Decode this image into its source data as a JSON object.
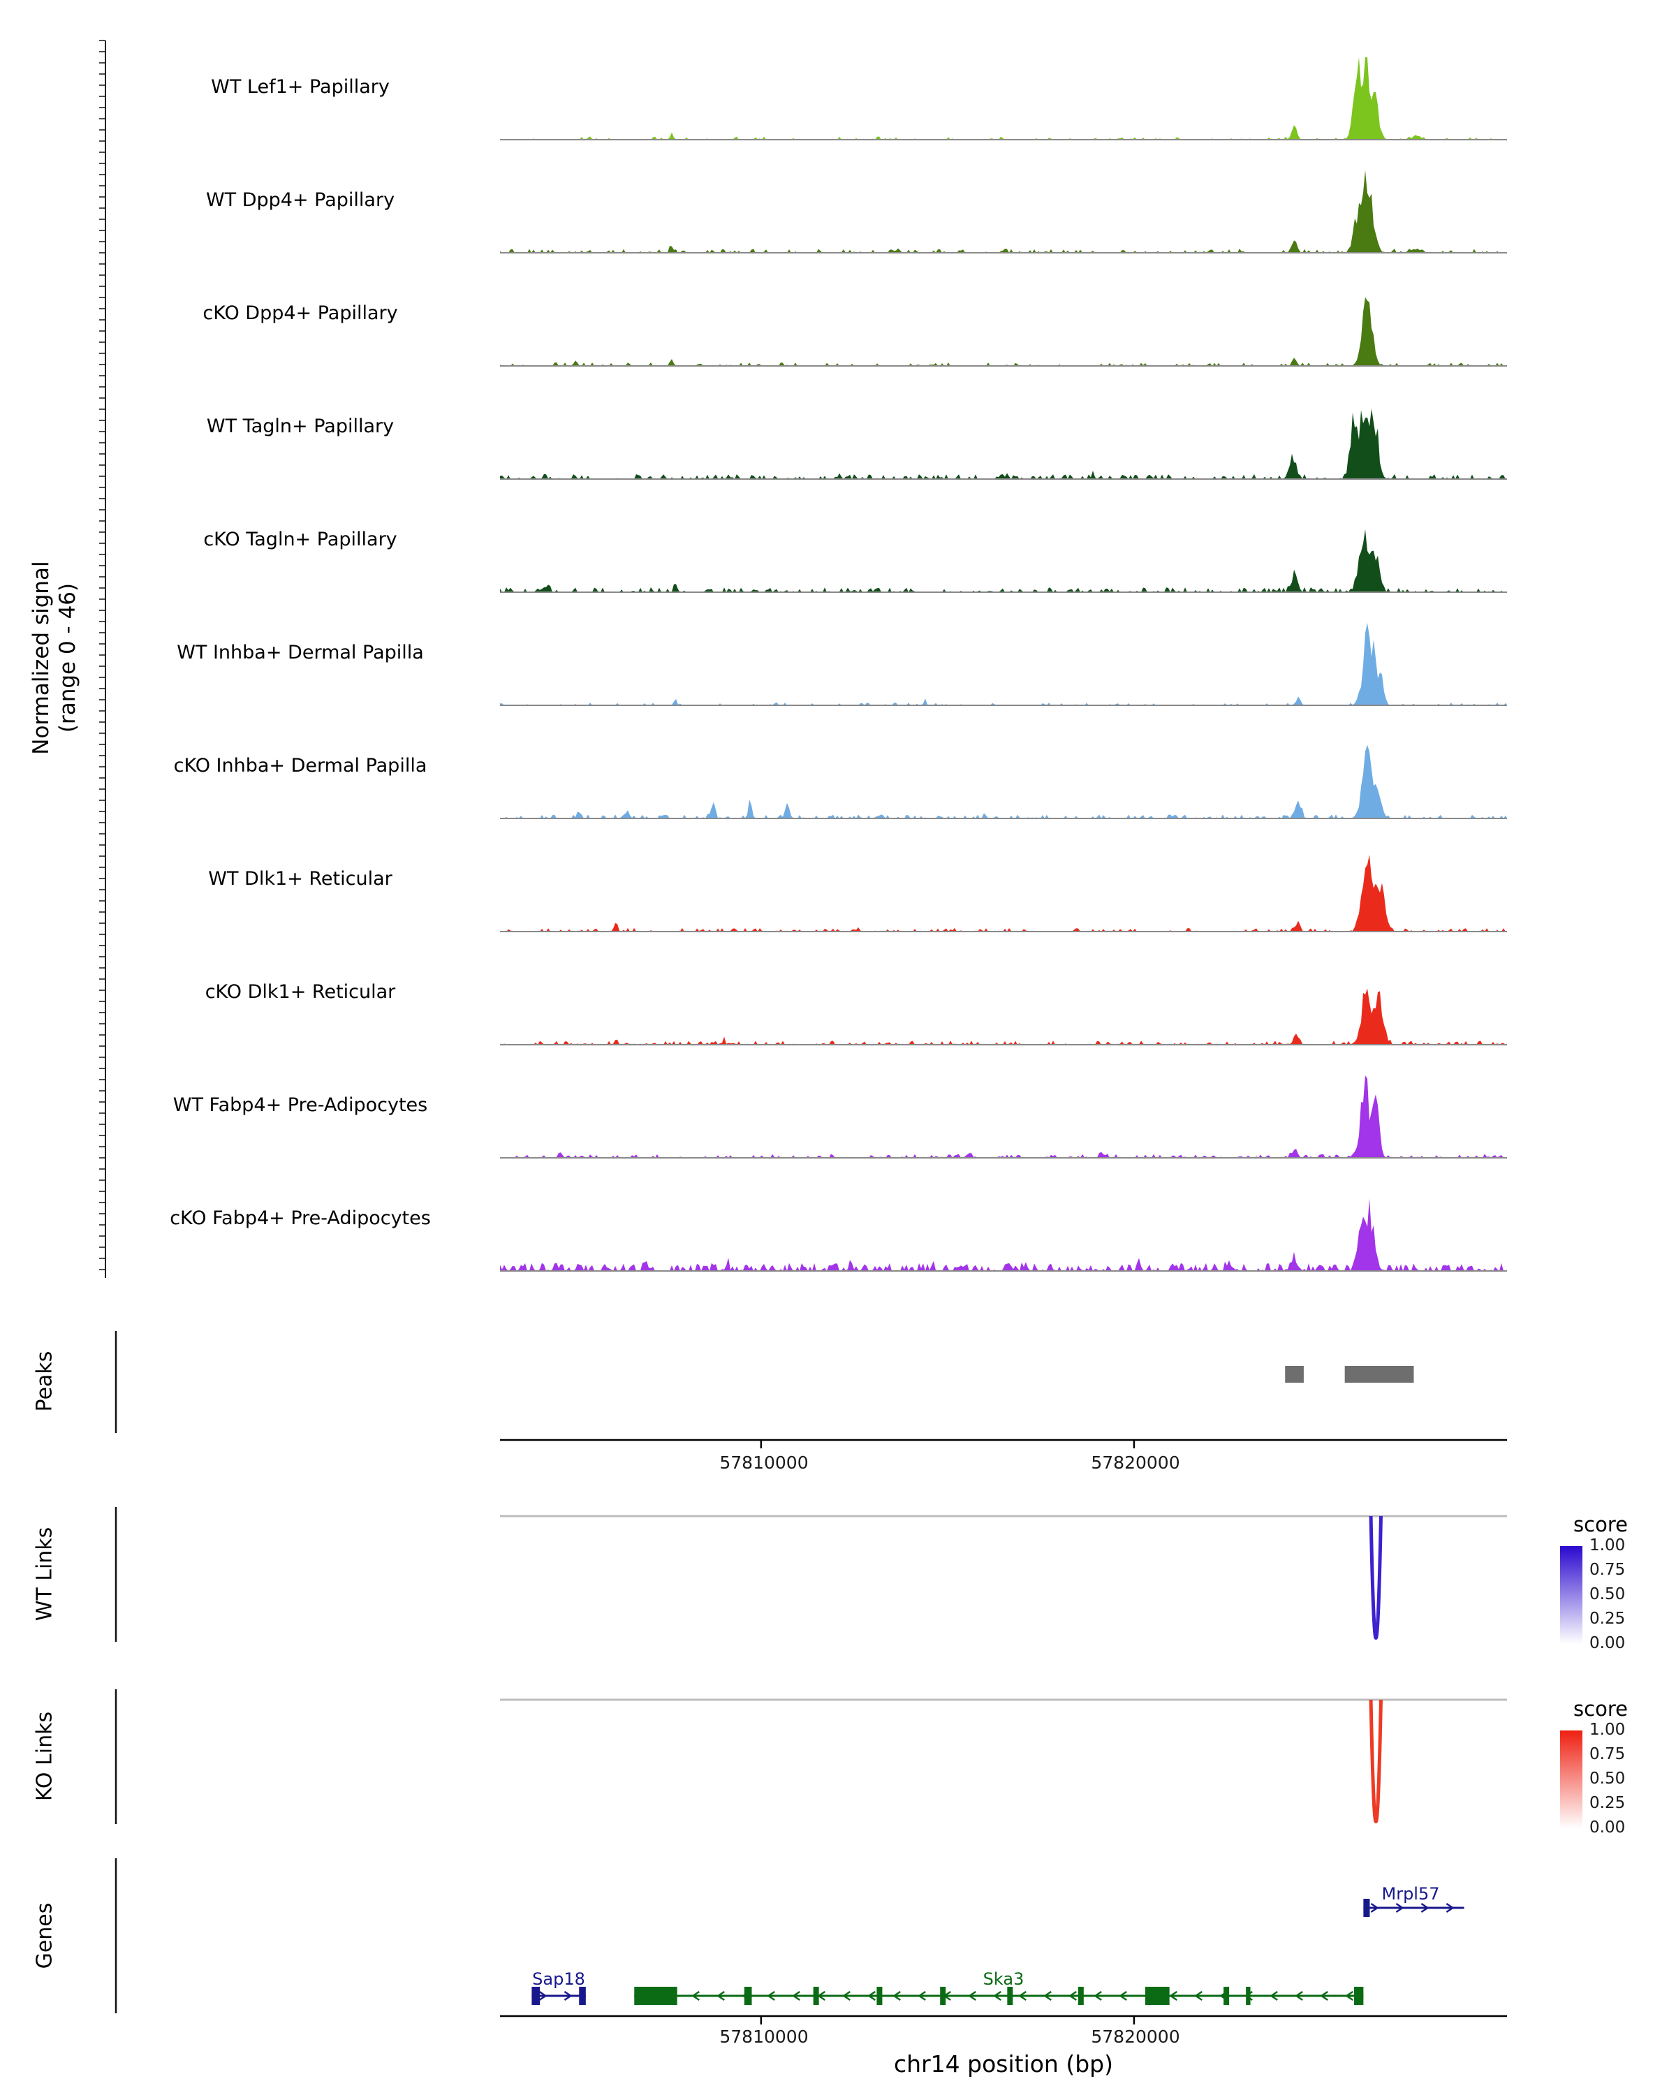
{
  "panel_labels": {
    "signal_line1": "Normalized signal",
    "signal_line2": "(range 0 - 46)",
    "peaks": "Peaks",
    "wt_links": "WT Links",
    "ko_links": "KO Links",
    "genes": "Genes"
  },
  "legend": {
    "title": "score",
    "ticks": [
      "1.00",
      "0.75",
      "0.50",
      "0.25",
      "0.00"
    ],
    "wt_top_color": "#2B09CE",
    "ko_top_color": "#EE2012"
  },
  "chart_data": {
    "type": "area",
    "title": "",
    "genome": {
      "chrom": "chr14",
      "xlabel": "chr14 position (bp)",
      "xlim": [
        57803000,
        57830000
      ],
      "x_ticks": [
        57810000,
        57820000
      ],
      "x_tick_labels": [
        "57810000",
        "57820000"
      ],
      "signal_range": [
        0,
        46
      ]
    },
    "tracks": [
      {
        "name": "WT Lef1+ Papillary",
        "color": "#7CC41E",
        "peaks": [
          {
            "c": 57826200,
            "w": 160,
            "h": 44
          },
          {
            "c": 57825950,
            "w": 90,
            "h": 22
          },
          {
            "c": 57826500,
            "w": 90,
            "h": 12
          },
          {
            "c": 57824300,
            "w": 70,
            "h": 7
          },
          {
            "c": 57807600,
            "w": 50,
            "h": 2.5
          },
          {
            "c": 57805400,
            "w": 50,
            "h": 1.5
          },
          {
            "c": 57827600,
            "w": 90,
            "h": 2.5
          }
        ],
        "noise": {
          "amp": 0.7,
          "density": 0.18,
          "seed": 11
        }
      },
      {
        "name": "WT Dpp4+ Papillary",
        "color": "#4A7A12",
        "peaks": [
          {
            "c": 57826250,
            "w": 140,
            "h": 45
          },
          {
            "c": 57825950,
            "w": 90,
            "h": 16
          },
          {
            "c": 57824300,
            "w": 70,
            "h": 6
          },
          {
            "c": 57807600,
            "w": 50,
            "h": 3
          },
          {
            "c": 57813600,
            "w": 50,
            "h": 1.5
          },
          {
            "c": 57827550,
            "w": 90,
            "h": 2.5
          }
        ],
        "noise": {
          "amp": 0.9,
          "density": 0.3,
          "seed": 22
        }
      },
      {
        "name": "cKO Dpp4+ Papillary",
        "color": "#4A7A12",
        "peaks": [
          {
            "c": 57826250,
            "w": 130,
            "h": 33
          },
          {
            "c": 57824300,
            "w": 60,
            "h": 4
          },
          {
            "c": 57807600,
            "w": 50,
            "h": 3
          },
          {
            "c": 57805000,
            "w": 40,
            "h": 2
          }
        ],
        "noise": {
          "amp": 0.8,
          "density": 0.25,
          "seed": 33
        }
      },
      {
        "name": "WT Tagln+ Papillary",
        "color": "#124E1A",
        "peaks": [
          {
            "c": 57826150,
            "w": 170,
            "h": 38
          },
          {
            "c": 57826450,
            "w": 100,
            "h": 26
          },
          {
            "c": 57825850,
            "w": 80,
            "h": 20
          },
          {
            "c": 57824250,
            "w": 90,
            "h": 12
          },
          {
            "c": 57804200,
            "w": 40,
            "h": 4
          },
          {
            "c": 57805000,
            "w": 40,
            "h": 3
          },
          {
            "c": 57812100,
            "w": 40,
            "h": 3
          },
          {
            "c": 57816600,
            "w": 40,
            "h": 2.5
          },
          {
            "c": 57818900,
            "w": 40,
            "h": 3
          }
        ],
        "noise": {
          "amp": 1.1,
          "density": 0.38,
          "seed": 44
        }
      },
      {
        "name": "cKO Tagln+ Papillary",
        "color": "#124E1A",
        "peaks": [
          {
            "c": 57826200,
            "w": 150,
            "h": 27
          },
          {
            "c": 57826500,
            "w": 90,
            "h": 18
          },
          {
            "c": 57824300,
            "w": 80,
            "h": 10
          },
          {
            "c": 57804300,
            "w": 40,
            "h": 3
          },
          {
            "c": 57807700,
            "w": 40,
            "h": 4
          },
          {
            "c": 57813100,
            "w": 50,
            "h": 3
          }
        ],
        "noise": {
          "amp": 1.1,
          "density": 0.42,
          "seed": 55
        }
      },
      {
        "name": "WT Inhba+ Dermal Papilla",
        "color": "#6FACE3",
        "peaks": [
          {
            "c": 57826300,
            "w": 140,
            "h": 42
          },
          {
            "c": 57826600,
            "w": 90,
            "h": 13
          },
          {
            "c": 57824400,
            "w": 60,
            "h": 4
          },
          {
            "c": 57807700,
            "w": 40,
            "h": 3
          },
          {
            "c": 57810400,
            "w": 40,
            "h": 2
          },
          {
            "c": 57814400,
            "w": 40,
            "h": 2
          }
        ],
        "noise": {
          "amp": 0.6,
          "density": 0.2,
          "seed": 66
        }
      },
      {
        "name": "cKO Inhba+ Dermal Papilla",
        "color": "#6FACE3",
        "peaks": [
          {
            "c": 57826250,
            "w": 130,
            "h": 34
          },
          {
            "c": 57826550,
            "w": 90,
            "h": 15
          },
          {
            "c": 57824400,
            "w": 80,
            "h": 8
          },
          {
            "c": 57808700,
            "w": 50,
            "h": 9
          },
          {
            "c": 57809700,
            "w": 50,
            "h": 8
          },
          {
            "c": 57810700,
            "w": 60,
            "h": 7
          },
          {
            "c": 57805100,
            "w": 40,
            "h": 4
          },
          {
            "c": 57806400,
            "w": 40,
            "h": 4
          },
          {
            "c": 57816000,
            "w": 40,
            "h": 3
          }
        ],
        "noise": {
          "amp": 0.9,
          "density": 0.35,
          "seed": 77
        }
      },
      {
        "name": "WT Dlk1+ Reticular",
        "color": "#EA2B1C",
        "peaks": [
          {
            "c": 57826300,
            "w": 150,
            "h": 43
          },
          {
            "c": 57826650,
            "w": 100,
            "h": 22
          },
          {
            "c": 57824400,
            "w": 60,
            "h": 5
          },
          {
            "c": 57806100,
            "w": 50,
            "h": 4
          },
          {
            "c": 57812600,
            "w": 40,
            "h": 2
          }
        ],
        "noise": {
          "amp": 0.8,
          "density": 0.3,
          "seed": 88
        }
      },
      {
        "name": "cKO Dlk1+ Reticular",
        "color": "#EA2B1C",
        "peaks": [
          {
            "c": 57826250,
            "w": 140,
            "h": 32
          },
          {
            "c": 57826600,
            "w": 100,
            "h": 24
          },
          {
            "c": 57824350,
            "w": 70,
            "h": 6
          },
          {
            "c": 57806100,
            "w": 40,
            "h": 3
          },
          {
            "c": 57809000,
            "w": 40,
            "h": 2.5
          }
        ],
        "noise": {
          "amp": 0.9,
          "density": 0.35,
          "seed": 99
        }
      },
      {
        "name": "WT Fabp4+ Pre-Adipocytes",
        "color": "#A234E9",
        "peaks": [
          {
            "c": 57826200,
            "w": 110,
            "h": 41
          },
          {
            "c": 57826480,
            "w": 90,
            "h": 28
          },
          {
            "c": 57824300,
            "w": 70,
            "h": 5
          },
          {
            "c": 57815600,
            "w": 50,
            "h": 3
          },
          {
            "c": 57819100,
            "w": 40,
            "h": 3
          },
          {
            "c": 57804600,
            "w": 40,
            "h": 2.5
          }
        ],
        "noise": {
          "amp": 0.9,
          "density": 0.35,
          "seed": 110
        }
      },
      {
        "name": "cKO Fabp4+ Pre-Adipocytes",
        "color": "#A234E9",
        "peaks": [
          {
            "c": 57826300,
            "w": 120,
            "h": 31
          },
          {
            "c": 57826050,
            "w": 80,
            "h": 20
          },
          {
            "c": 57824300,
            "w": 90,
            "h": 6
          },
          {
            "c": 57804500,
            "w": 50,
            "h": 5
          },
          {
            "c": 57806900,
            "w": 50,
            "h": 6
          },
          {
            "c": 57809100,
            "w": 40,
            "h": 4
          },
          {
            "c": 57812400,
            "w": 50,
            "h": 5
          },
          {
            "c": 57814600,
            "w": 40,
            "h": 4
          },
          {
            "c": 57817100,
            "w": 50,
            "h": 4
          },
          {
            "c": 57820100,
            "w": 40,
            "h": 4
          },
          {
            "c": 57822500,
            "w": 40,
            "h": 3.5
          }
        ],
        "noise": {
          "amp": 1.8,
          "density": 0.55,
          "seed": 121
        }
      }
    ],
    "peaks": [
      [
        57824050,
        57824550
      ],
      [
        57825650,
        57827500
      ]
    ],
    "links": [
      {
        "group": "WT",
        "start": 57826350,
        "end": 57826620,
        "score": 0.95,
        "color": "#3B22D0"
      },
      {
        "group": "KO",
        "start": 57826350,
        "end": 57826620,
        "score": 0.92,
        "color": "#EE3A24"
      }
    ],
    "genes": [
      {
        "name": "Sap18",
        "strand": "+",
        "start": 57803850,
        "end": 57805300,
        "color": "#18188C",
        "row": 2,
        "exons": [
          [
            57803850,
            57804070
          ],
          [
            57805120,
            57805300
          ]
        ]
      },
      {
        "name": "Ska3",
        "strand": "-",
        "start": 57806600,
        "end": 57826150,
        "color": "#0B6B14",
        "row": 2,
        "exons": [
          [
            57806600,
            57807750
          ],
          [
            57809550,
            57809750
          ],
          [
            57811400,
            57811550
          ],
          [
            57813100,
            57813250
          ],
          [
            57814800,
            57814950
          ],
          [
            57816600,
            57816750
          ],
          [
            57818500,
            57818650
          ],
          [
            57820300,
            57820950
          ],
          [
            57822400,
            57822550
          ],
          [
            57823000,
            57823120
          ],
          [
            57825900,
            57826150
          ]
        ]
      },
      {
        "name": "Mrpl57",
        "strand": "+",
        "start": 57826150,
        "end": 57828850,
        "color": "#18188C",
        "row": 1,
        "exons": [
          [
            57826150,
            57826320
          ]
        ]
      }
    ]
  }
}
